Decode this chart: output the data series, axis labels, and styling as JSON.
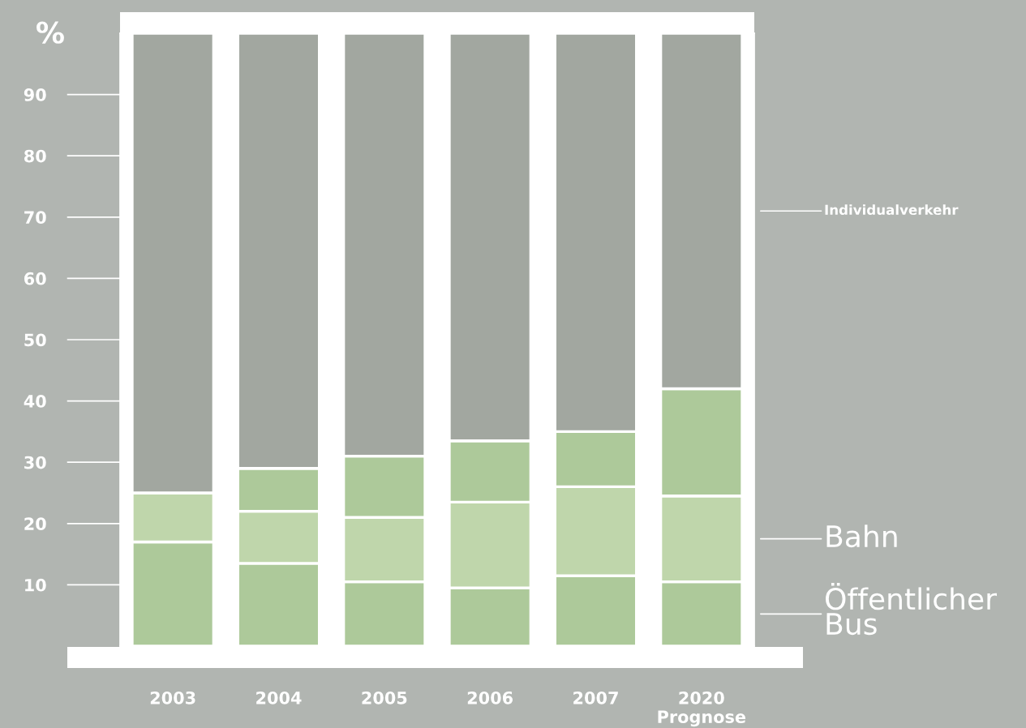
{
  "chart_data": {
    "type": "bar",
    "stacked": true,
    "ylabel": "%",
    "categories": [
      "2003",
      "2004",
      "2005",
      "2006",
      "2007",
      "2020\nPrognose"
    ],
    "series": [
      {
        "name": "Öffentlicher\nBus",
        "color": "#adc99a",
        "values": [
          17,
          13.5,
          10.5,
          9.5,
          11.5,
          10.5
        ]
      },
      {
        "name": "Bahn",
        "color": "#bfd6ab",
        "values": [
          8,
          8.5,
          10.5,
          14,
          14.5,
          14
        ]
      },
      {
        "color": "#adc99a",
        "values": [
          null,
          7,
          10,
          10,
          9,
          17.5
        ]
      },
      {
        "name": "Individualverkehr",
        "color": "#a2a7a0",
        "values": [
          75,
          71,
          69,
          66.5,
          65,
          58
        ]
      }
    ],
    "ylim": [
      0,
      100
    ],
    "yticks": [
      10,
      20,
      30,
      40,
      50,
      60,
      70,
      80,
      90
    ],
    "legend": "right"
  }
}
